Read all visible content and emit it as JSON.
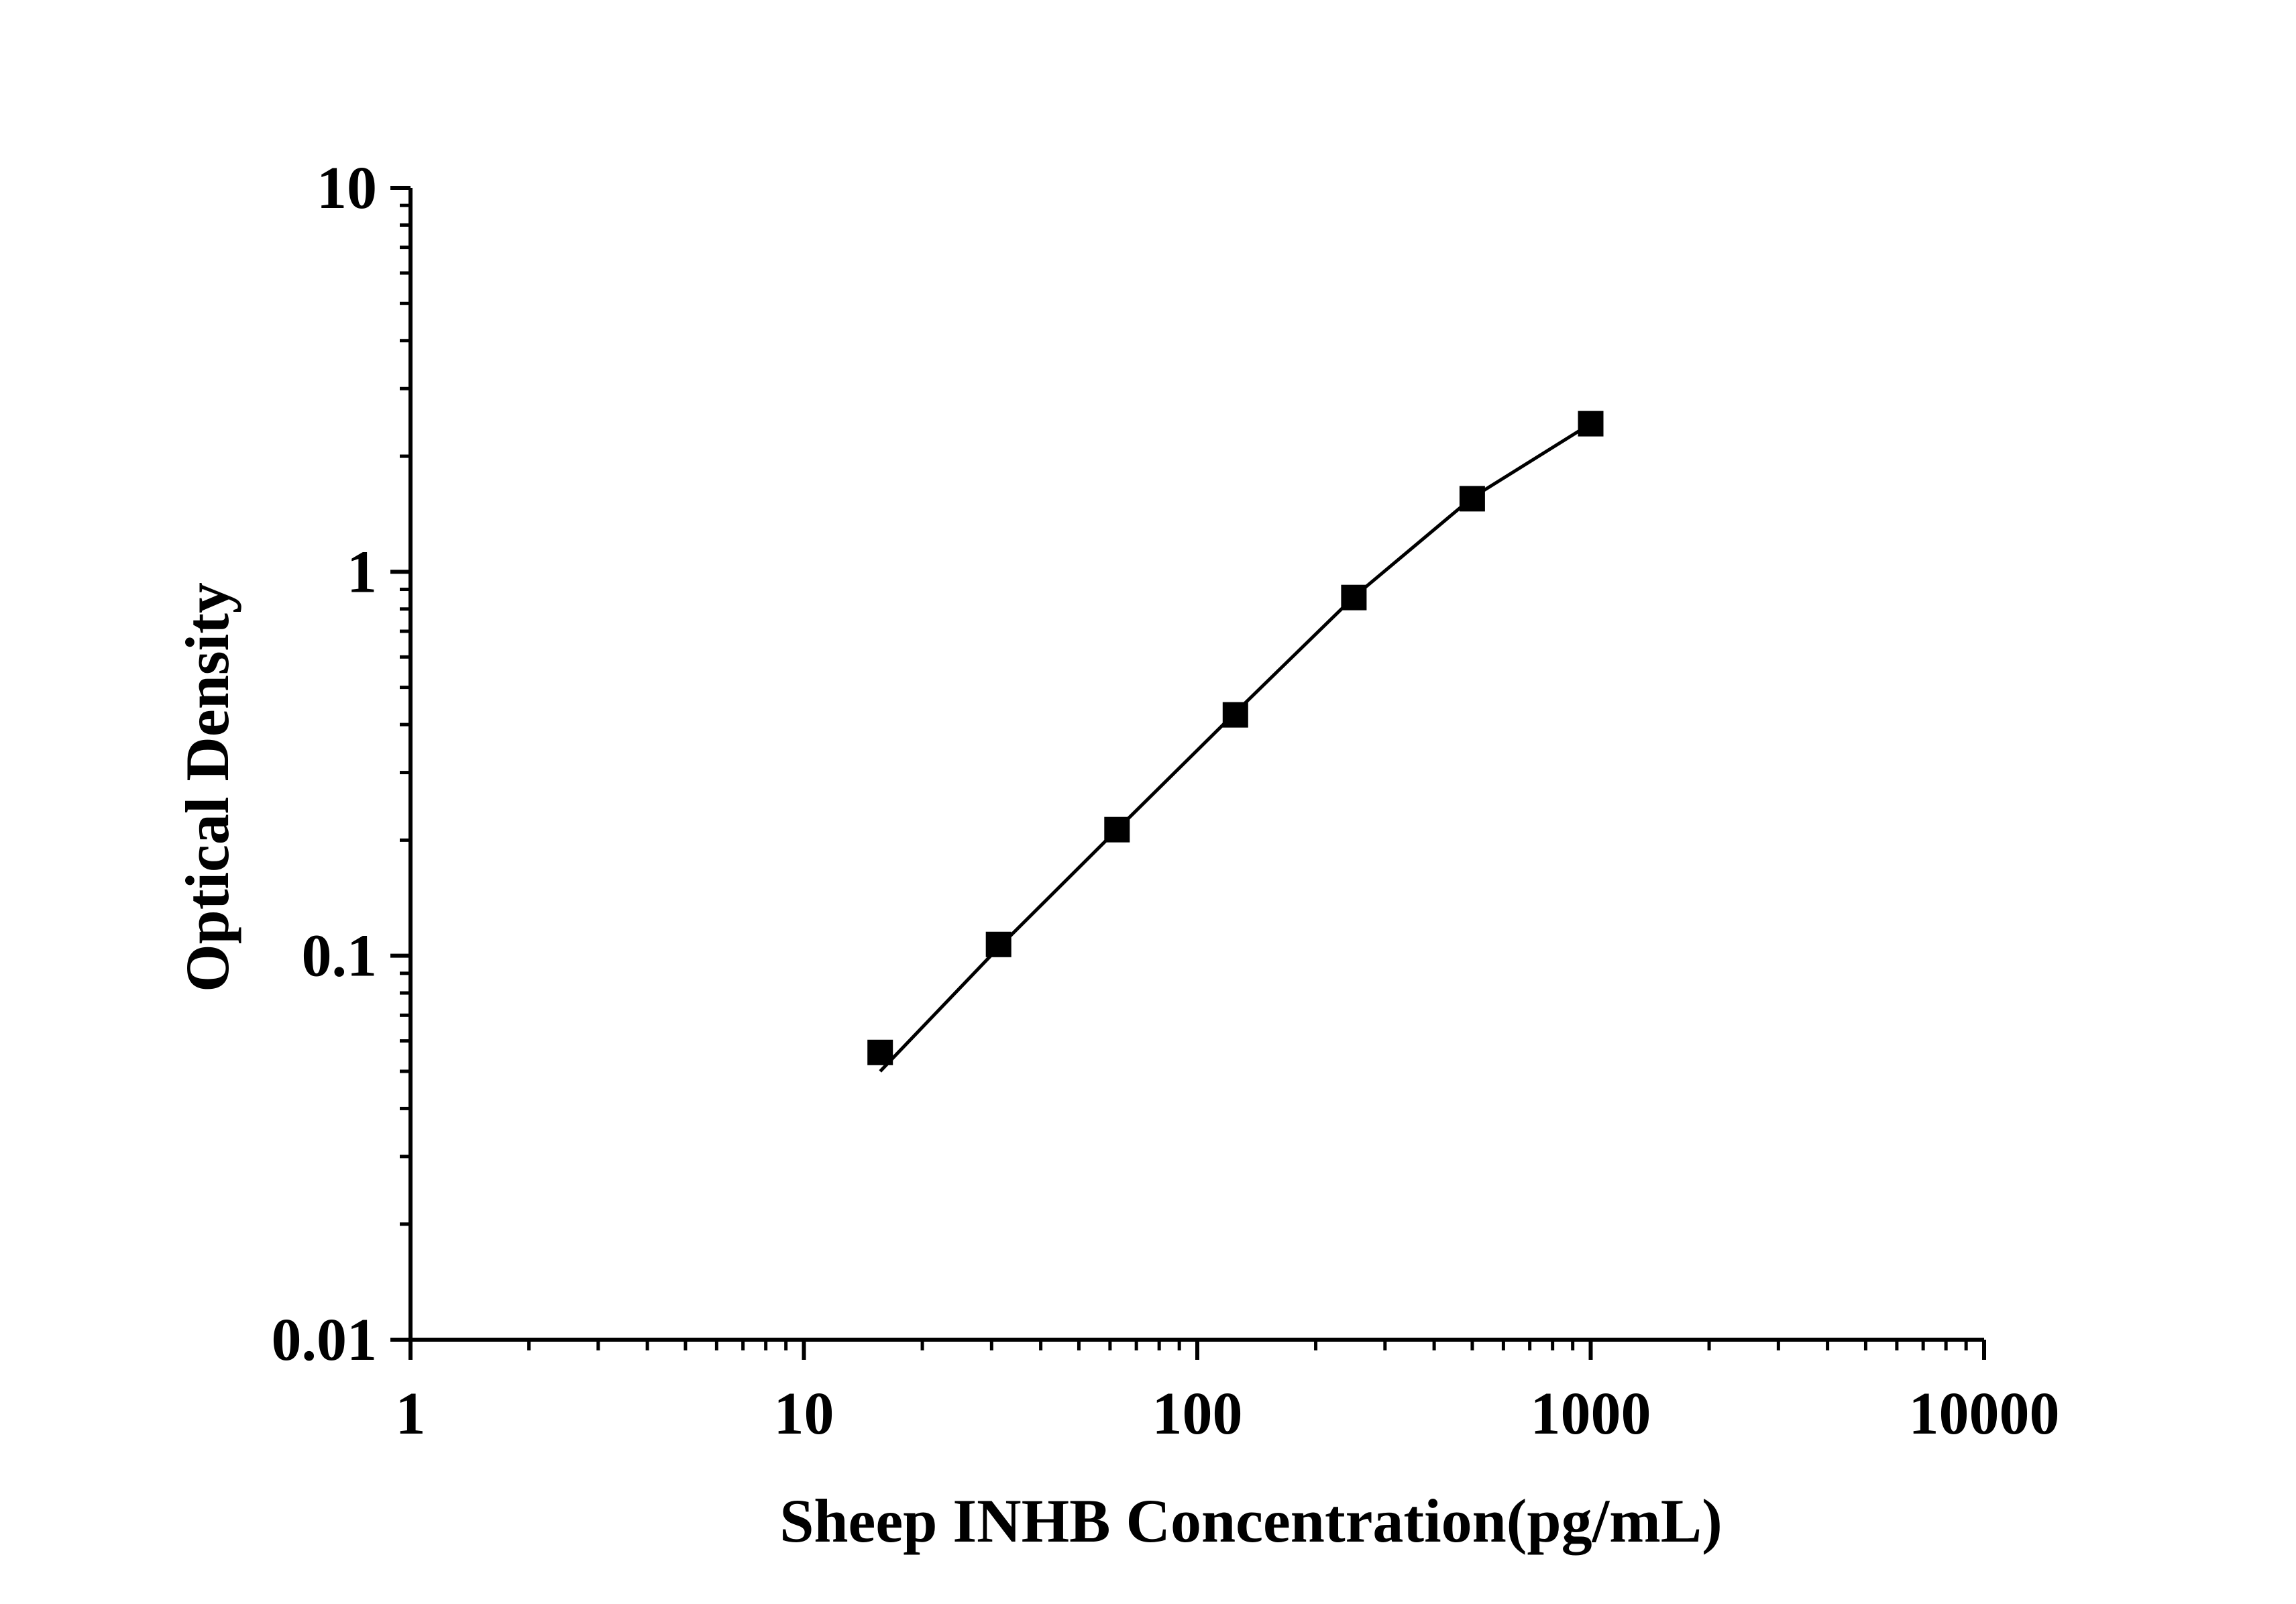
{
  "chart_data": {
    "type": "scatter",
    "title": "",
    "xlabel": "Sheep INHB Concentration(pg/mL)",
    "ylabel": "Optical Density",
    "xscale": "log",
    "yscale": "log",
    "xlim": [
      1,
      10000
    ],
    "ylim": [
      0.01,
      10
    ],
    "x_ticks": [
      "1",
      "10",
      "100",
      "1000",
      "10000"
    ],
    "y_ticks": [
      "0.01",
      "0.1",
      "1",
      "10"
    ],
    "grid": false,
    "legend": "none",
    "series": [
      {
        "points": [
          {
            "x": 15.625,
            "y": 0.056
          },
          {
            "x": 31.25,
            "y": 0.107
          },
          {
            "x": 62.5,
            "y": 0.213
          },
          {
            "x": 125,
            "y": 0.424
          },
          {
            "x": 250,
            "y": 0.857
          },
          {
            "x": 500,
            "y": 1.55
          },
          {
            "x": 1000,
            "y": 2.43
          }
        ],
        "fit_curve": [
          {
            "x": 15.625,
            "y": 0.05
          },
          {
            "x": 31.25,
            "y": 0.105
          },
          {
            "x": 62.5,
            "y": 0.213
          },
          {
            "x": 125,
            "y": 0.43
          },
          {
            "x": 250,
            "y": 0.86
          },
          {
            "x": 500,
            "y": 1.56
          },
          {
            "x": 1000,
            "y": 2.43
          }
        ],
        "color": "#000000",
        "marker": "square"
      }
    ]
  }
}
